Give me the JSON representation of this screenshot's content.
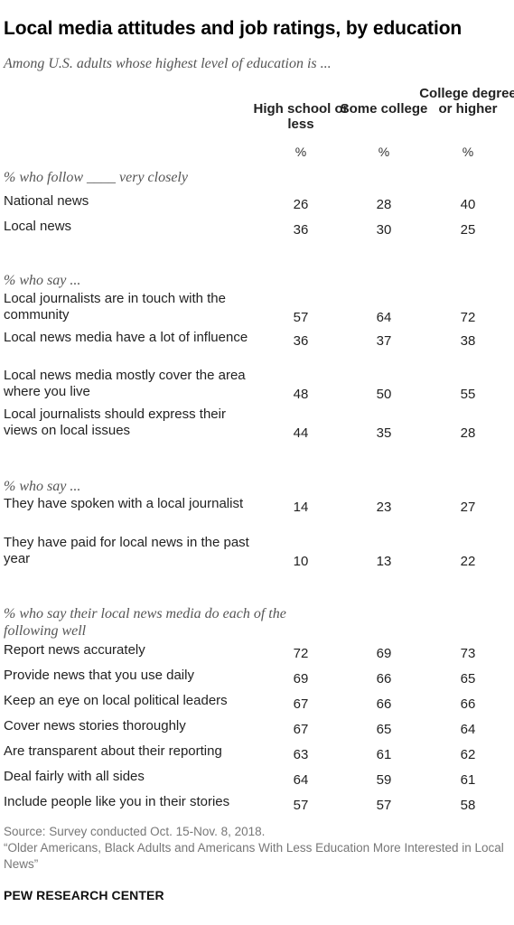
{
  "chart_data": {
    "type": "table",
    "title": "Local media attitudes and job ratings, by education",
    "subtitle": "Among U.S. adults whose highest level of education is ...",
    "columns": [
      "High school or less",
      "Some college",
      "College degree or higher"
    ],
    "unit": "%",
    "sections": [
      {
        "label": "% who follow ____ very closely",
        "rows": [
          {
            "label": "National news",
            "values": [
              26,
              28,
              40
            ]
          },
          {
            "label": "Local news",
            "values": [
              36,
              30,
              25
            ]
          }
        ]
      },
      {
        "label": "% who say ...",
        "rows": [
          {
            "label": "Local journalists are in touch with the community",
            "values": [
              57,
              64,
              72
            ]
          },
          {
            "label": "Local news media have a lot of influence",
            "values": [
              36,
              37,
              38
            ]
          },
          {
            "label": "Local news media mostly cover the area where you live",
            "values": [
              48,
              50,
              55
            ]
          },
          {
            "label": "Local journalists should express their views on local issues",
            "values": [
              44,
              35,
              28
            ]
          }
        ]
      },
      {
        "label": "% who say ...",
        "rows": [
          {
            "label": "They have spoken with a local journalist",
            "values": [
              14,
              23,
              27
            ]
          },
          {
            "label": "They have paid for local news in the past year",
            "values": [
              10,
              13,
              22
            ]
          }
        ]
      },
      {
        "label": "% who say their local news media do each of the following well",
        "rows": [
          {
            "label": "Report news accurately",
            "values": [
              72,
              69,
              73
            ]
          },
          {
            "label": "Provide news that you use daily",
            "values": [
              69,
              66,
              65
            ]
          },
          {
            "label": "Keep an eye on local political leaders",
            "values": [
              67,
              66,
              66
            ]
          },
          {
            "label": "Cover news stories thoroughly",
            "values": [
              67,
              65,
              64
            ]
          },
          {
            "label": "Are transparent about their reporting",
            "values": [
              63,
              61,
              62
            ]
          },
          {
            "label": "Deal fairly with all sides",
            "values": [
              64,
              59,
              61
            ]
          },
          {
            "label": "Include people like you in their stories",
            "values": [
              57,
              57,
              58
            ]
          }
        ]
      }
    ],
    "source": "Source: Survey conducted Oct. 15-Nov. 8, 2018.",
    "report": "“Older Americans, Black Adults and Americans With Less Education More Interested in Local News”",
    "organization": "PEW RESEARCH CENTER"
  }
}
